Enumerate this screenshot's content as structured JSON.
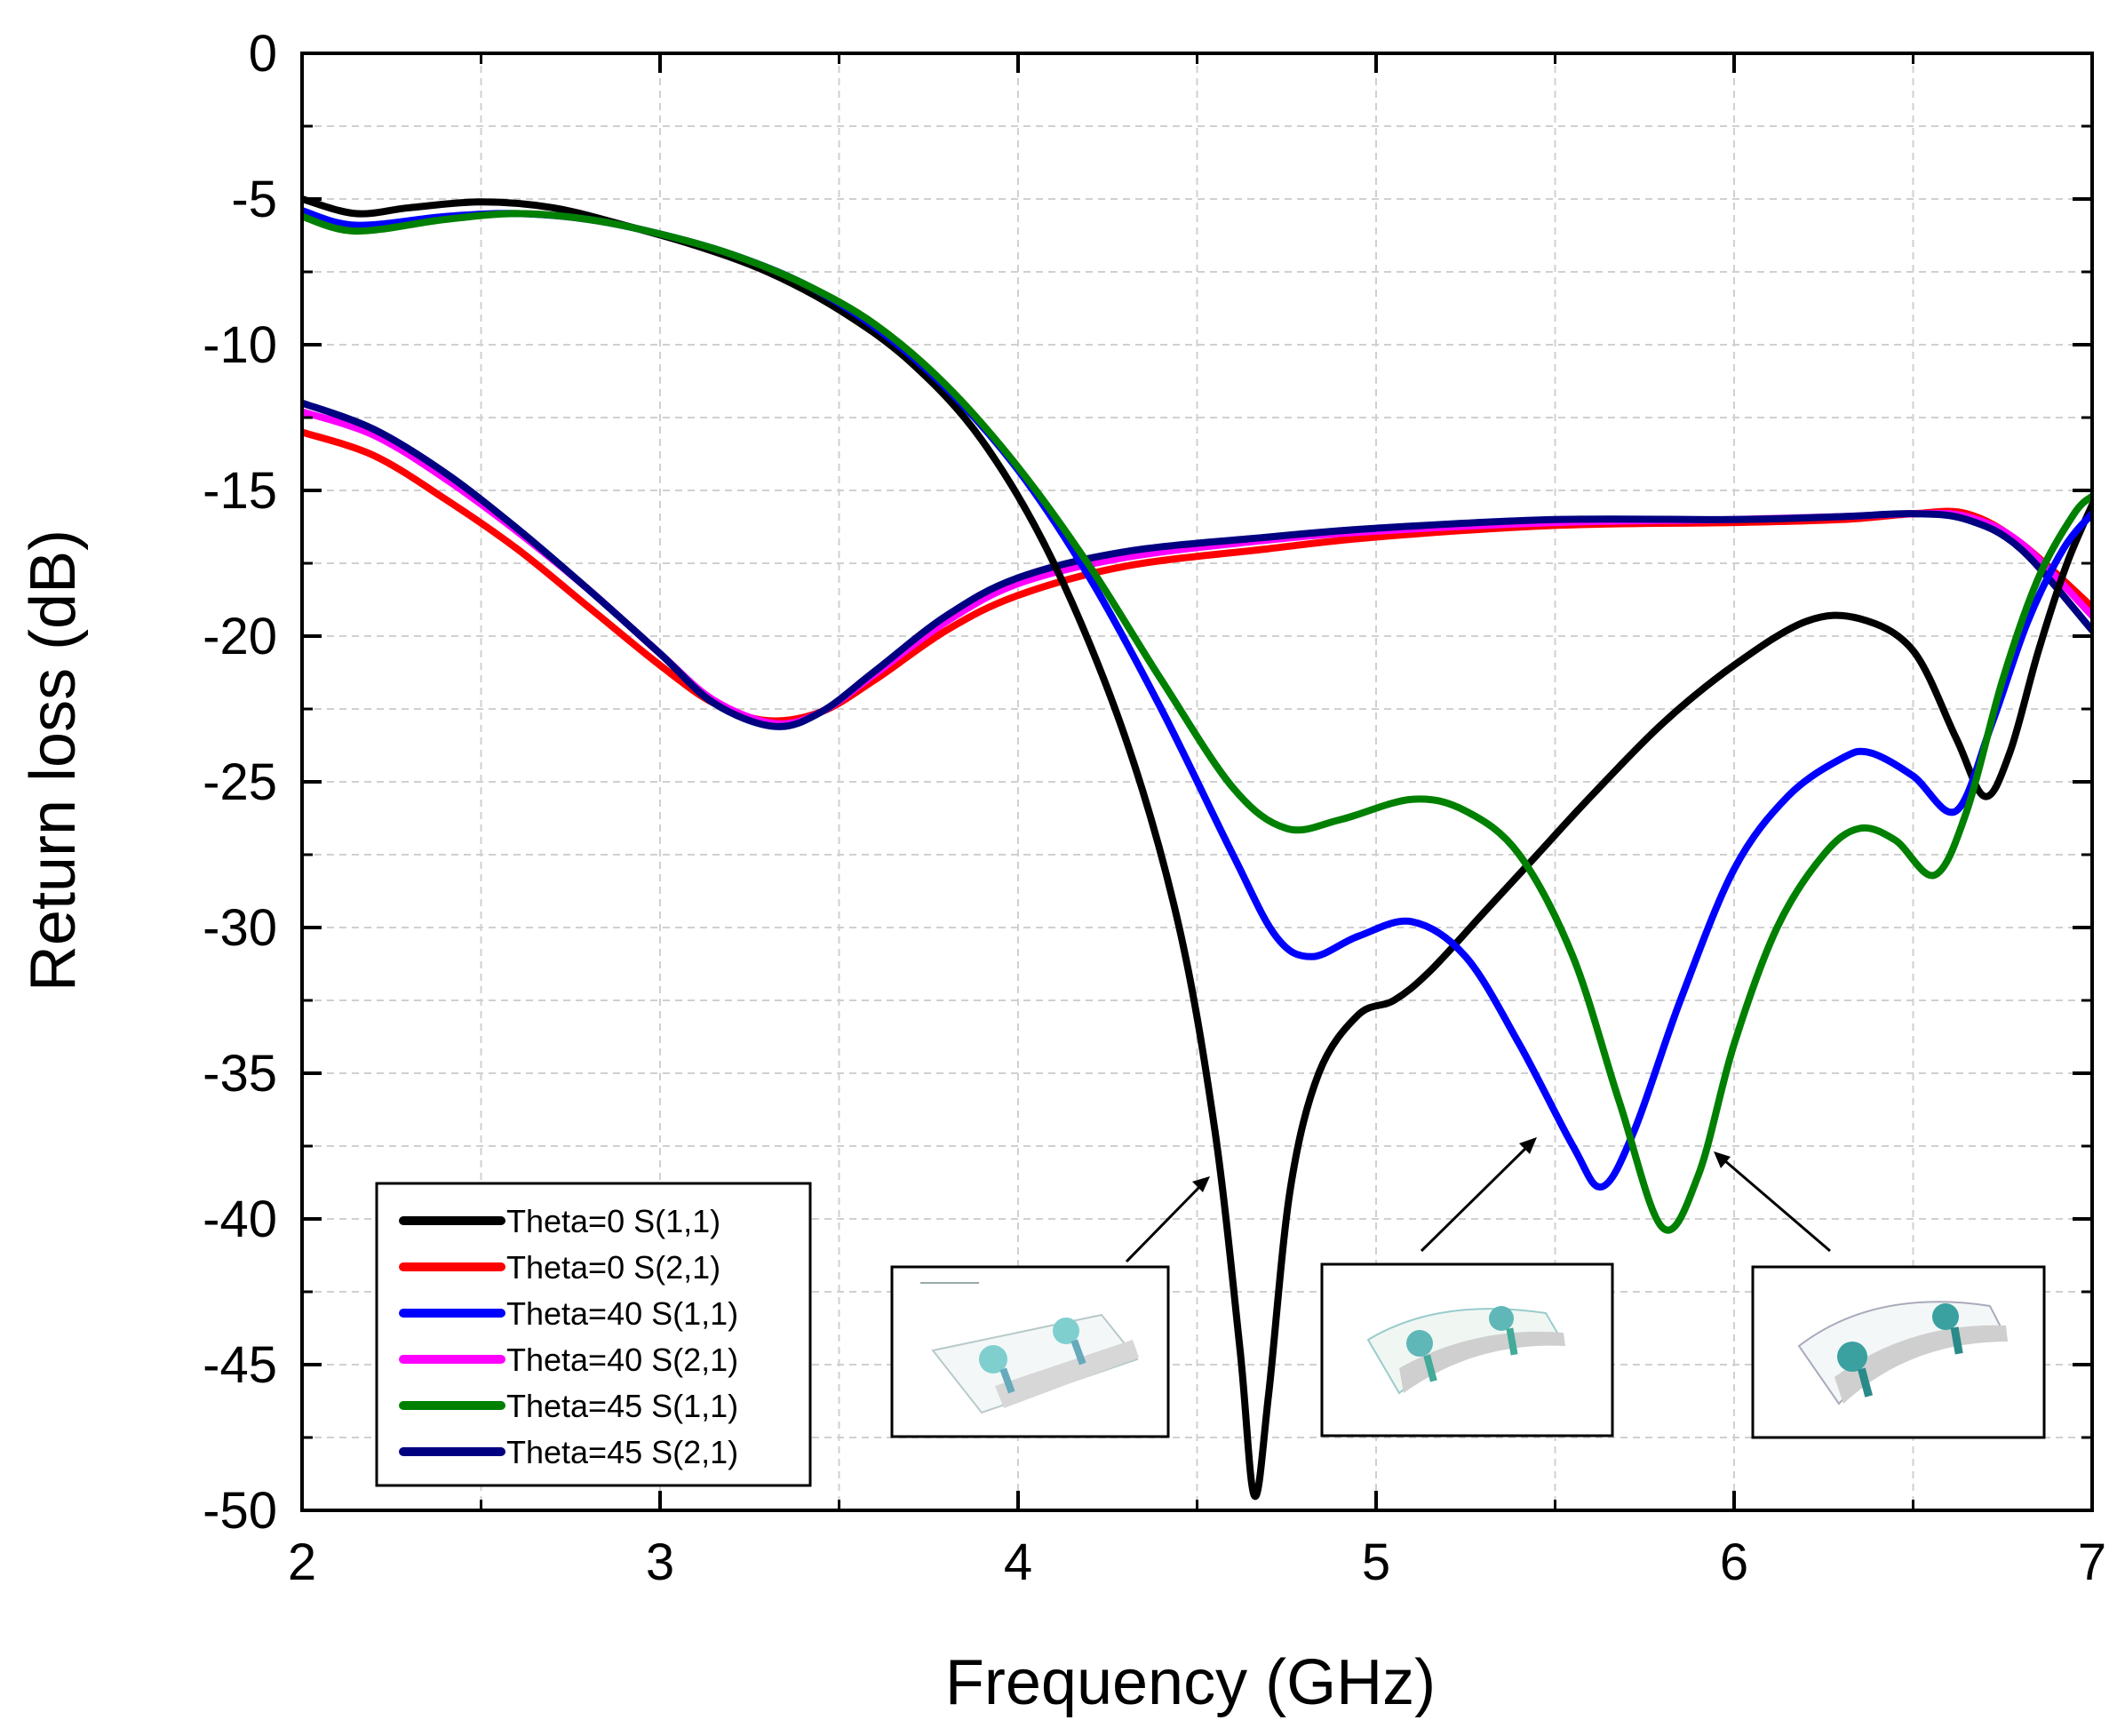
{
  "chart_data": {
    "type": "line",
    "title": "",
    "xlabel": "Frequency (GHz)",
    "ylabel": "Return loss (dB)",
    "xlim": [
      2,
      7
    ],
    "ylim": [
      -50,
      0
    ],
    "x_major_ticks": [
      2,
      3,
      4,
      5,
      6,
      7
    ],
    "y_major_ticks": [
      0,
      -5,
      -10,
      -15,
      -20,
      -25,
      -30,
      -35,
      -40,
      -45,
      -50
    ],
    "grid": true,
    "legend_position": "bottom-left",
    "series": [
      {
        "name": "Theta=0 S(1,1)",
        "color": "#000000",
        "points": [
          [
            2.0,
            -5.0
          ],
          [
            2.15,
            -5.5
          ],
          [
            2.3,
            -5.3
          ],
          [
            2.5,
            -5.1
          ],
          [
            2.7,
            -5.3
          ],
          [
            2.9,
            -5.9
          ],
          [
            3.1,
            -6.6
          ],
          [
            3.3,
            -7.5
          ],
          [
            3.5,
            -8.8
          ],
          [
            3.7,
            -10.6
          ],
          [
            3.9,
            -13.3
          ],
          [
            4.1,
            -17.5
          ],
          [
            4.3,
            -23.5
          ],
          [
            4.45,
            -30.0
          ],
          [
            4.55,
            -37.0
          ],
          [
            4.62,
            -44.5
          ],
          [
            4.66,
            -49.5
          ],
          [
            4.7,
            -46.0
          ],
          [
            4.76,
            -39.0
          ],
          [
            4.84,
            -35.0
          ],
          [
            4.95,
            -33.0
          ],
          [
            5.05,
            -32.5
          ],
          [
            5.15,
            -31.5
          ],
          [
            5.3,
            -29.5
          ],
          [
            5.45,
            -27.5
          ],
          [
            5.6,
            -25.5
          ],
          [
            5.8,
            -23.0
          ],
          [
            6.0,
            -21.0
          ],
          [
            6.2,
            -19.5
          ],
          [
            6.35,
            -19.4
          ],
          [
            6.5,
            -20.5
          ],
          [
            6.62,
            -23.5
          ],
          [
            6.7,
            -25.5
          ],
          [
            6.77,
            -24.0
          ],
          [
            6.85,
            -20.5
          ],
          [
            6.93,
            -17.5
          ],
          [
            7.0,
            -15.5
          ]
        ]
      },
      {
        "name": "Theta=0 S(2,1)",
        "color": "#ff0000",
        "points": [
          [
            2.0,
            -13.0
          ],
          [
            2.2,
            -13.8
          ],
          [
            2.4,
            -15.3
          ],
          [
            2.6,
            -17.0
          ],
          [
            2.8,
            -19.0
          ],
          [
            3.0,
            -21.0
          ],
          [
            3.15,
            -22.3
          ],
          [
            3.3,
            -22.9
          ],
          [
            3.45,
            -22.6
          ],
          [
            3.6,
            -21.5
          ],
          [
            3.8,
            -19.8
          ],
          [
            4.0,
            -18.6
          ],
          [
            4.3,
            -17.6
          ],
          [
            4.7,
            -17.0
          ],
          [
            5.0,
            -16.6
          ],
          [
            5.5,
            -16.2
          ],
          [
            6.0,
            -16.1
          ],
          [
            6.3,
            -16.0
          ],
          [
            6.5,
            -15.8
          ],
          [
            6.65,
            -15.8
          ],
          [
            6.8,
            -16.8
          ],
          [
            7.0,
            -19.0
          ]
        ]
      },
      {
        "name": "Theta=40 S(1,1)",
        "color": "#0000ff",
        "points": [
          [
            2.0,
            -5.4
          ],
          [
            2.15,
            -5.9
          ],
          [
            2.4,
            -5.6
          ],
          [
            2.6,
            -5.5
          ],
          [
            2.8,
            -5.7
          ],
          [
            3.0,
            -6.2
          ],
          [
            3.2,
            -6.9
          ],
          [
            3.4,
            -7.9
          ],
          [
            3.6,
            -9.4
          ],
          [
            3.8,
            -11.5
          ],
          [
            4.0,
            -14.3
          ],
          [
            4.2,
            -18.0
          ],
          [
            4.4,
            -22.5
          ],
          [
            4.6,
            -27.5
          ],
          [
            4.72,
            -30.3
          ],
          [
            4.82,
            -31.0
          ],
          [
            4.95,
            -30.3
          ],
          [
            5.1,
            -29.8
          ],
          [
            5.25,
            -31.0
          ],
          [
            5.4,
            -34.0
          ],
          [
            5.55,
            -37.5
          ],
          [
            5.63,
            -38.9
          ],
          [
            5.72,
            -37.0
          ],
          [
            5.85,
            -32.5
          ],
          [
            6.0,
            -28.0
          ],
          [
            6.15,
            -25.5
          ],
          [
            6.3,
            -24.2
          ],
          [
            6.38,
            -24.0
          ],
          [
            6.5,
            -24.8
          ],
          [
            6.62,
            -26.0
          ],
          [
            6.72,
            -23.0
          ],
          [
            6.82,
            -19.5
          ],
          [
            6.92,
            -17.0
          ],
          [
            7.0,
            -15.8
          ]
        ]
      },
      {
        "name": "Theta=40 S(2,1)",
        "color": "#ff00ff",
        "points": [
          [
            2.0,
            -12.3
          ],
          [
            2.2,
            -13.1
          ],
          [
            2.4,
            -14.6
          ],
          [
            2.6,
            -16.4
          ],
          [
            2.8,
            -18.4
          ],
          [
            3.0,
            -20.6
          ],
          [
            3.15,
            -22.2
          ],
          [
            3.32,
            -23.0
          ],
          [
            3.45,
            -22.6
          ],
          [
            3.6,
            -21.3
          ],
          [
            3.8,
            -19.5
          ],
          [
            4.0,
            -18.2
          ],
          [
            4.3,
            -17.3
          ],
          [
            4.7,
            -16.7
          ],
          [
            5.0,
            -16.4
          ],
          [
            5.5,
            -16.1
          ],
          [
            6.0,
            -16.0
          ],
          [
            6.3,
            -15.9
          ],
          [
            6.5,
            -15.8
          ],
          [
            6.65,
            -15.9
          ],
          [
            6.8,
            -16.8
          ],
          [
            7.0,
            -19.3
          ]
        ]
      },
      {
        "name": "Theta=45 S(1,1)",
        "color": "#008000",
        "points": [
          [
            2.0,
            -5.6
          ],
          [
            2.15,
            -6.1
          ],
          [
            2.4,
            -5.7
          ],
          [
            2.6,
            -5.5
          ],
          [
            2.8,
            -5.7
          ],
          [
            3.0,
            -6.2
          ],
          [
            3.2,
            -6.9
          ],
          [
            3.4,
            -7.9
          ],
          [
            3.6,
            -9.3
          ],
          [
            3.8,
            -11.4
          ],
          [
            4.0,
            -14.2
          ],
          [
            4.2,
            -17.6
          ],
          [
            4.4,
            -21.5
          ],
          [
            4.6,
            -25.2
          ],
          [
            4.75,
            -26.6
          ],
          [
            4.9,
            -26.3
          ],
          [
            5.1,
            -25.6
          ],
          [
            5.25,
            -26.0
          ],
          [
            5.4,
            -27.5
          ],
          [
            5.55,
            -31.0
          ],
          [
            5.68,
            -36.0
          ],
          [
            5.8,
            -40.3
          ],
          [
            5.9,
            -38.5
          ],
          [
            6.0,
            -34.0
          ],
          [
            6.12,
            -30.0
          ],
          [
            6.25,
            -27.5
          ],
          [
            6.35,
            -26.6
          ],
          [
            6.45,
            -27.0
          ],
          [
            6.56,
            -28.2
          ],
          [
            6.65,
            -26.0
          ],
          [
            6.75,
            -21.5
          ],
          [
            6.85,
            -18.0
          ],
          [
            6.95,
            -15.8
          ],
          [
            7.0,
            -15.2
          ]
        ]
      },
      {
        "name": "Theta=45 S(2,1)",
        "color": "#000080",
        "points": [
          [
            2.0,
            -12.0
          ],
          [
            2.2,
            -12.9
          ],
          [
            2.4,
            -14.4
          ],
          [
            2.6,
            -16.3
          ],
          [
            2.8,
            -18.4
          ],
          [
            3.0,
            -20.6
          ],
          [
            3.15,
            -22.3
          ],
          [
            3.32,
            -23.1
          ],
          [
            3.45,
            -22.6
          ],
          [
            3.6,
            -21.2
          ],
          [
            3.8,
            -19.3
          ],
          [
            4.0,
            -18.0
          ],
          [
            4.3,
            -17.1
          ],
          [
            4.7,
            -16.6
          ],
          [
            5.0,
            -16.3
          ],
          [
            5.5,
            -16.0
          ],
          [
            6.0,
            -16.0
          ],
          [
            6.3,
            -15.9
          ],
          [
            6.5,
            -15.8
          ],
          [
            6.65,
            -16.0
          ],
          [
            6.8,
            -17.0
          ],
          [
            7.0,
            -19.8
          ]
        ]
      }
    ],
    "annotations": [
      {
        "type": "inset-image",
        "label": "flat antenna model"
      },
      {
        "type": "inset-image",
        "label": "bent antenna model theta=40"
      },
      {
        "type": "inset-image",
        "label": "bent antenna model theta=45"
      }
    ]
  }
}
